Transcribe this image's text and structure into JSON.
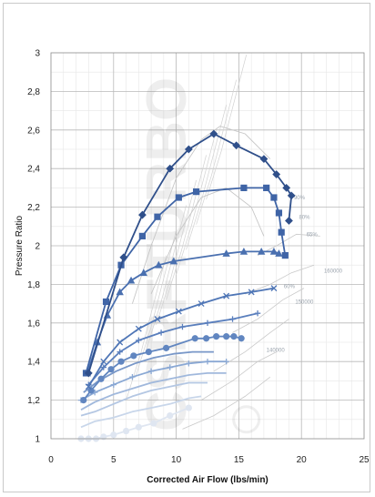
{
  "chart_data": {
    "type": "line",
    "title": "",
    "xlabel": "Corrected Air Flow (lbs/min)",
    "ylabel": "Pressure Ratio",
    "xlim": [
      0,
      25
    ],
    "ylim": [
      1,
      3
    ],
    "x_ticks": [
      "0",
      "5",
      "10",
      "15",
      "20",
      "25"
    ],
    "y_ticks": [
      "1",
      "1,2",
      "1,4",
      "1,6",
      "1,8",
      "2",
      "2,2",
      "2,4",
      "2,6",
      "2,8",
      "3"
    ],
    "grid": true,
    "legend": "none",
    "watermark": "CSRFTURBO",
    "annotations": [
      "160000",
      "150000",
      "140000",
      "90%",
      "80%",
      "65%",
      "60%"
    ],
    "series": [
      {
        "marker": "circle",
        "color": "#dfe6f1",
        "x": [
          2.4,
          3.0,
          3.6,
          4.2,
          5.0,
          6.0,
          7.0,
          8.2,
          9.5,
          11.0
        ],
        "y": [
          1.0,
          1.0,
          1.0,
          1.01,
          1.02,
          1.04,
          1.06,
          1.08,
          1.12,
          1.16
        ]
      },
      {
        "marker": "line",
        "color": "#c8d6ea",
        "x": [
          2.4,
          3.5,
          5.0,
          6.5,
          8.0,
          9.5,
          11.0,
          12.0
        ],
        "y": [
          1.06,
          1.09,
          1.11,
          1.14,
          1.16,
          1.18,
          1.21,
          1.22
        ]
      },
      {
        "marker": "line",
        "color": "#b4c7e3",
        "x": [
          2.4,
          3.5,
          5.0,
          6.5,
          8.0,
          9.5,
          11.0,
          12.5
        ],
        "y": [
          1.12,
          1.14,
          1.18,
          1.22,
          1.25,
          1.27,
          1.29,
          1.29
        ]
      },
      {
        "marker": "line",
        "color": "#a0b8dc",
        "x": [
          2.4,
          3.5,
          5.0,
          6.5,
          8.0,
          9.5,
          11.0,
          12.5,
          14.0
        ],
        "y": [
          1.15,
          1.19,
          1.23,
          1.26,
          1.29,
          1.31,
          1.33,
          1.34,
          1.34
        ]
      },
      {
        "marker": "plus",
        "color": "#8aa8d4",
        "x": [
          2.4,
          3.5,
          5.0,
          6.5,
          8.0,
          9.5,
          11.0,
          12.5,
          14.0
        ],
        "y": [
          1.2,
          1.24,
          1.28,
          1.32,
          1.35,
          1.37,
          1.39,
          1.4,
          1.4
        ]
      },
      {
        "marker": "line",
        "color": "#7897c8",
        "x": [
          2.6,
          3.8,
          5.2,
          6.7,
          8.2,
          9.8,
          11.3,
          13.0
        ],
        "y": [
          1.24,
          1.3,
          1.35,
          1.39,
          1.42,
          1.44,
          1.45,
          1.45
        ]
      },
      {
        "marker": "circle",
        "color": "#6186c0",
        "x": [
          2.6,
          3.2,
          4.0,
          4.8,
          5.6,
          6.6,
          7.8,
          9.2,
          11.5,
          12.4,
          13.2,
          14.0,
          14.6,
          15.2
        ],
        "y": [
          1.2,
          1.25,
          1.31,
          1.36,
          1.4,
          1.43,
          1.45,
          1.47,
          1.52,
          1.52,
          1.53,
          1.53,
          1.53,
          1.52
        ]
      },
      {
        "marker": "plus",
        "color": "#5a7fbd",
        "x": [
          3.0,
          4.2,
          5.5,
          7.0,
          8.8,
          10.5,
          12.5,
          14.5,
          16.5
        ],
        "y": [
          1.28,
          1.37,
          1.45,
          1.51,
          1.55,
          1.58,
          1.6,
          1.62,
          1.65
        ]
      },
      {
        "marker": "x",
        "color": "#4f76b6",
        "x": [
          3.0,
          4.2,
          5.5,
          7.0,
          8.5,
          10.2,
          12.0,
          14.0,
          16.0,
          17.8
        ],
        "y": [
          1.27,
          1.4,
          1.5,
          1.57,
          1.62,
          1.66,
          1.7,
          1.74,
          1.76,
          1.78
        ]
      },
      {
        "marker": "triangle",
        "color": "#4a70b0",
        "x": [
          2.9,
          3.7,
          4.5,
          5.5,
          6.4,
          7.4,
          8.6,
          9.8,
          14.0,
          15.4,
          16.8,
          17.8,
          18.2
        ],
        "y": [
          1.34,
          1.5,
          1.64,
          1.76,
          1.82,
          1.86,
          1.9,
          1.92,
          1.96,
          1.97,
          1.97,
          1.97,
          1.96
        ]
      },
      {
        "marker": "square",
        "color": "#3f64a6",
        "x": [
          2.8,
          4.4,
          5.6,
          7.3,
          8.5,
          10.2,
          11.6,
          15.4,
          17.2,
          17.8,
          18.2,
          18.4,
          18.7
        ],
        "y": [
          1.34,
          1.71,
          1.9,
          2.05,
          2.15,
          2.25,
          2.28,
          2.3,
          2.3,
          2.25,
          2.17,
          2.07,
          1.95
        ]
      },
      {
        "marker": "diamond",
        "color": "#2f4f8a",
        "x": [
          3.0,
          5.8,
          7.3,
          9.5,
          11.0,
          13.0,
          14.8,
          17.0,
          18.0,
          18.8,
          19.2,
          19.0
        ],
        "y": [
          1.34,
          1.94,
          2.16,
          2.4,
          2.5,
          2.58,
          2.52,
          2.45,
          2.37,
          2.3,
          2.26,
          2.13
        ]
      }
    ]
  }
}
